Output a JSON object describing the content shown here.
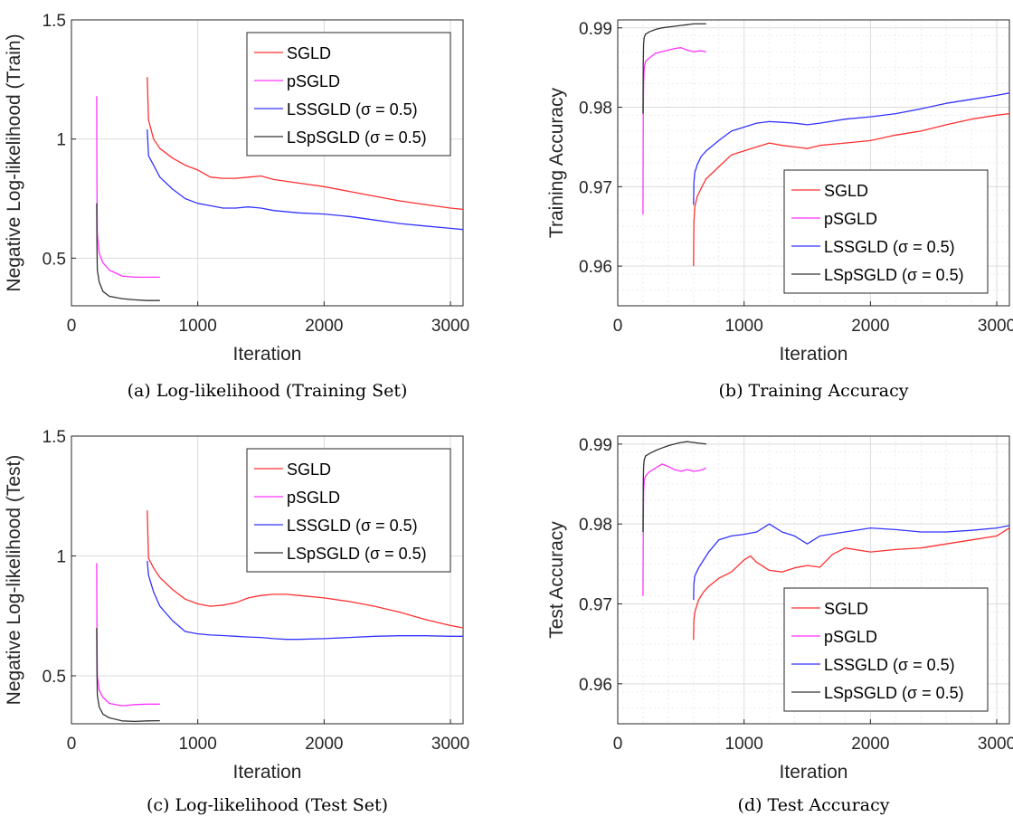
{
  "panels": [
    {
      "caption": "(a) Log-likelihood (Training Set)",
      "xlabel": "Iteration",
      "ylabel": "Negative Log-likelihood (Train)",
      "xlim": [
        0,
        3100
      ],
      "ylim": [
        0.3,
        1.5
      ],
      "xticks": [
        0,
        1000,
        2000,
        3000
      ],
      "xtick_labels": [
        "0",
        "1000",
        "2000",
        "3000"
      ],
      "yticks": [
        0.5,
        1,
        1.5
      ],
      "ytick_labels": [
        "0.5",
        "1",
        "1.5"
      ],
      "minor_grid": false,
      "legend": "top-right",
      "legend_labels": [
        "SGLD",
        "pSGLD",
        "LSSGLD (σ = 0.5)",
        "LSpSGLD (σ = 0.5)"
      ]
    },
    {
      "caption": "(b) Training Accuracy",
      "xlabel": "Iteration",
      "ylabel": "Training Accuracy",
      "xlim": [
        0,
        3100
      ],
      "ylim": [
        0.955,
        0.991
      ],
      "xticks": [
        0,
        1000,
        2000,
        3000
      ],
      "xtick_labels": [
        "0",
        "1000",
        "2000",
        "3000"
      ],
      "yticks": [
        0.96,
        0.97,
        0.98,
        0.99
      ],
      "ytick_labels": [
        "0.96",
        "0.97",
        "0.98",
        "0.99"
      ],
      "minor_grid": true,
      "legend": "bottom-right",
      "legend_labels": [
        "SGLD",
        "pSGLD",
        "LSSGLD (σ = 0.5)",
        "LSpSGLD (σ = 0.5)"
      ]
    },
    {
      "caption": "(c) Log-likelihood (Test Set)",
      "xlabel": "Iteration",
      "ylabel": "Negative Log-likelihood (Test)",
      "xlim": [
        0,
        3100
      ],
      "ylim": [
        0.3,
        1.5
      ],
      "xticks": [
        0,
        1000,
        2000,
        3000
      ],
      "xtick_labels": [
        "0",
        "1000",
        "2000",
        "3000"
      ],
      "yticks": [
        0.5,
        1,
        1.5
      ],
      "ytick_labels": [
        "0.5",
        "1",
        "1.5"
      ],
      "minor_grid": false,
      "legend": "top-right",
      "legend_labels": [
        "SGLD",
        "pSGLD",
        "LSSGLD (σ = 0.5)",
        "LSpSGLD (σ = 0.5)"
      ]
    },
    {
      "caption": "(d) Test Accuracy",
      "xlabel": "Iteration",
      "ylabel": "Test Accuracy",
      "xlim": [
        0,
        3100
      ],
      "ylim": [
        0.955,
        0.991
      ],
      "xticks": [
        0,
        1000,
        2000,
        3000
      ],
      "xtick_labels": [
        "0",
        "1000",
        "2000",
        "3000"
      ],
      "yticks": [
        0.96,
        0.97,
        0.98,
        0.99
      ],
      "ytick_labels": [
        "0.96",
        "0.97",
        "0.98",
        "0.99"
      ],
      "minor_grid": true,
      "legend": "bottom-right",
      "legend_labels": [
        "SGLD",
        "pSGLD",
        "LSSGLD (σ = 0.5)",
        "LSpSGLD (σ = 0.5)"
      ]
    }
  ],
  "series_colors": {
    "SGLD": "#ff3030",
    "pSGLD": "#ff33ff",
    "LSSGLD": "#3333ff",
    "LSpSGLD": "#333333"
  },
  "chart_data": [
    {
      "type": "line",
      "title": "(a) Log-likelihood (Training Set)",
      "xlabel": "Iteration",
      "ylabel": "Negative Log-likelihood (Train)",
      "xlim": [
        0,
        3100
      ],
      "ylim": [
        0.3,
        1.5
      ],
      "series": [
        {
          "name": "SGLD",
          "x": [
            600,
            610,
            650,
            700,
            800,
            900,
            1000,
            1100,
            1200,
            1300,
            1400,
            1500,
            1600,
            1800,
            2000,
            2200,
            2400,
            2600,
            2800,
            3000,
            3100
          ],
          "y": [
            1.26,
            1.08,
            1.0,
            0.96,
            0.92,
            0.89,
            0.87,
            0.84,
            0.835,
            0.835,
            0.84,
            0.845,
            0.83,
            0.815,
            0.8,
            0.78,
            0.76,
            0.74,
            0.725,
            0.71,
            0.705
          ]
        },
        {
          "name": "pSGLD",
          "x": [
            200,
            202,
            205,
            220,
            250,
            300,
            400,
            500,
            600,
            700
          ],
          "y": [
            1.18,
            0.8,
            0.6,
            0.52,
            0.48,
            0.45,
            0.425,
            0.42,
            0.42,
            0.42
          ]
        },
        {
          "name": "LSSGLD (σ = 0.5)",
          "x": [
            600,
            610,
            650,
            700,
            800,
            900,
            1000,
            1100,
            1200,
            1300,
            1400,
            1500,
            1600,
            1800,
            2000,
            2200,
            2400,
            2600,
            2800,
            3000,
            3100
          ],
          "y": [
            1.04,
            0.93,
            0.89,
            0.84,
            0.79,
            0.75,
            0.73,
            0.72,
            0.71,
            0.71,
            0.715,
            0.71,
            0.7,
            0.69,
            0.685,
            0.675,
            0.66,
            0.645,
            0.635,
            0.625,
            0.62
          ]
        },
        {
          "name": "LSpSGLD (σ = 0.5)",
          "x": [
            200,
            202,
            205,
            220,
            250,
            300,
            400,
            500,
            600,
            700
          ],
          "y": [
            0.73,
            0.55,
            0.45,
            0.4,
            0.36,
            0.34,
            0.33,
            0.325,
            0.322,
            0.322
          ]
        }
      ]
    },
    {
      "type": "line",
      "title": "(b) Training Accuracy",
      "xlabel": "Iteration",
      "ylabel": "Training Accuracy",
      "xlim": [
        0,
        3100
      ],
      "ylim": [
        0.955,
        0.991
      ],
      "series": [
        {
          "name": "SGLD",
          "x": [
            600,
            603,
            610,
            630,
            660,
            700,
            800,
            900,
            1000,
            1100,
            1200,
            1300,
            1400,
            1500,
            1600,
            1800,
            2000,
            2200,
            2400,
            2600,
            2800,
            3000,
            3100
          ],
          "y": [
            0.96,
            0.9655,
            0.9675,
            0.9688,
            0.9698,
            0.971,
            0.9725,
            0.974,
            0.9745,
            0.975,
            0.9755,
            0.9752,
            0.975,
            0.9748,
            0.9752,
            0.9755,
            0.9758,
            0.9765,
            0.977,
            0.9778,
            0.9785,
            0.979,
            0.9792
          ]
        },
        {
          "name": "pSGLD",
          "x": [
            200,
            202,
            205,
            210,
            220,
            250,
            300,
            350,
            400,
            450,
            500,
            550,
            600,
            650,
            700
          ],
          "y": [
            0.9665,
            0.9785,
            0.983,
            0.985,
            0.9858,
            0.9862,
            0.9868,
            0.987,
            0.9872,
            0.9874,
            0.9875,
            0.9872,
            0.987,
            0.9871,
            0.987
          ]
        },
        {
          "name": "LSSGLD (σ = 0.5)",
          "x": [
            600,
            603,
            610,
            630,
            660,
            700,
            800,
            900,
            1000,
            1100,
            1200,
            1300,
            1400,
            1500,
            1600,
            1800,
            2000,
            2200,
            2400,
            2600,
            2800,
            3000,
            3100
          ],
          "y": [
            0.9677,
            0.9705,
            0.9718,
            0.9728,
            0.9738,
            0.9745,
            0.9758,
            0.977,
            0.9775,
            0.978,
            0.9782,
            0.9781,
            0.978,
            0.9778,
            0.978,
            0.9785,
            0.9788,
            0.9792,
            0.9798,
            0.9805,
            0.981,
            0.9815,
            0.9818
          ]
        },
        {
          "name": "LSpSGLD (σ = 0.5)",
          "x": [
            200,
            202,
            205,
            210,
            220,
            250,
            300,
            350,
            400,
            450,
            500,
            550,
            600,
            650,
            700
          ],
          "y": [
            0.9792,
            0.9855,
            0.988,
            0.9888,
            0.9892,
            0.9895,
            0.9898,
            0.99,
            0.9901,
            0.9902,
            0.9903,
            0.9904,
            0.9905,
            0.9905,
            0.9905
          ]
        }
      ]
    },
    {
      "type": "line",
      "title": "(c) Log-likelihood (Test Set)",
      "xlabel": "Iteration",
      "ylabel": "Negative Log-likelihood (Test)",
      "xlim": [
        0,
        3100
      ],
      "ylim": [
        0.3,
        1.5
      ],
      "series": [
        {
          "name": "SGLD",
          "x": [
            600,
            610,
            650,
            700,
            800,
            900,
            1000,
            1100,
            1200,
            1300,
            1400,
            1500,
            1600,
            1700,
            1800,
            2000,
            2200,
            2400,
            2600,
            2800,
            3000,
            3100
          ],
          "y": [
            1.19,
            0.99,
            0.95,
            0.91,
            0.86,
            0.82,
            0.8,
            0.79,
            0.795,
            0.805,
            0.825,
            0.835,
            0.84,
            0.84,
            0.835,
            0.825,
            0.81,
            0.79,
            0.765,
            0.735,
            0.71,
            0.7
          ]
        },
        {
          "name": "pSGLD",
          "x": [
            200,
            202,
            205,
            220,
            250,
            300,
            400,
            500,
            600,
            700
          ],
          "y": [
            0.97,
            0.7,
            0.5,
            0.44,
            0.41,
            0.385,
            0.375,
            0.38,
            0.382,
            0.382
          ]
        },
        {
          "name": "LSSGLD (σ = 0.5)",
          "x": [
            600,
            610,
            650,
            700,
            800,
            900,
            1000,
            1100,
            1200,
            1300,
            1400,
            1500,
            1600,
            1700,
            1800,
            2000,
            2200,
            2400,
            2600,
            2800,
            3000,
            3100
          ],
          "y": [
            0.98,
            0.92,
            0.85,
            0.79,
            0.73,
            0.685,
            0.675,
            0.67,
            0.668,
            0.665,
            0.662,
            0.66,
            0.655,
            0.652,
            0.652,
            0.655,
            0.66,
            0.665,
            0.667,
            0.667,
            0.665,
            0.665
          ]
        },
        {
          "name": "LSpSGLD (σ = 0.5)",
          "x": [
            200,
            202,
            205,
            220,
            250,
            300,
            400,
            500,
            600,
            700
          ],
          "y": [
            0.7,
            0.52,
            0.42,
            0.37,
            0.34,
            0.325,
            0.312,
            0.31,
            0.312,
            0.313
          ]
        }
      ]
    },
    {
      "type": "line",
      "title": "(d) Test Accuracy",
      "xlabel": "Iteration",
      "ylabel": "Test Accuracy",
      "xlim": [
        0,
        3100
      ],
      "ylim": [
        0.955,
        0.991
      ],
      "series": [
        {
          "name": "SGLD",
          "x": [
            600,
            603,
            610,
            640,
            680,
            720,
            800,
            900,
            1000,
            1050,
            1100,
            1200,
            1300,
            1400,
            1500,
            1600,
            1700,
            1800,
            2000,
            2200,
            2400,
            2600,
            2800,
            3000,
            3100
          ],
          "y": [
            0.9655,
            0.968,
            0.969,
            0.9705,
            0.9715,
            0.9722,
            0.9732,
            0.974,
            0.9755,
            0.976,
            0.9752,
            0.9742,
            0.974,
            0.9745,
            0.9748,
            0.9746,
            0.9762,
            0.977,
            0.9765,
            0.9768,
            0.977,
            0.9775,
            0.978,
            0.9785,
            0.9795
          ]
        },
        {
          "name": "pSGLD",
          "x": [
            200,
            202,
            205,
            210,
            220,
            250,
            300,
            350,
            400,
            450,
            500,
            550,
            600,
            650,
            700
          ],
          "y": [
            0.971,
            0.9785,
            0.984,
            0.9855,
            0.986,
            0.9865,
            0.987,
            0.9875,
            0.9872,
            0.9868,
            0.9866,
            0.9868,
            0.9866,
            0.9867,
            0.987
          ]
        },
        {
          "name": "LSSGLD (σ = 0.5)",
          "x": [
            600,
            603,
            610,
            640,
            680,
            720,
            800,
            900,
            1000,
            1100,
            1150,
            1200,
            1250,
            1300,
            1400,
            1500,
            1600,
            1800,
            2000,
            2200,
            2400,
            2600,
            2800,
            3000,
            3100
          ],
          "y": [
            0.9705,
            0.9725,
            0.9735,
            0.9745,
            0.9755,
            0.9765,
            0.978,
            0.9785,
            0.9787,
            0.979,
            0.9795,
            0.98,
            0.9795,
            0.979,
            0.9785,
            0.9775,
            0.9785,
            0.979,
            0.9795,
            0.9793,
            0.979,
            0.979,
            0.9792,
            0.9795,
            0.9798
          ]
        },
        {
          "name": "LSpSGLD (σ = 0.5)",
          "x": [
            200,
            202,
            205,
            210,
            220,
            250,
            300,
            350,
            400,
            450,
            500,
            550,
            600,
            650,
            700
          ],
          "y": [
            0.979,
            0.985,
            0.9872,
            0.988,
            0.9885,
            0.9888,
            0.9892,
            0.9895,
            0.9898,
            0.99,
            0.9902,
            0.9903,
            0.9902,
            0.9901,
            0.99
          ]
        }
      ]
    }
  ]
}
